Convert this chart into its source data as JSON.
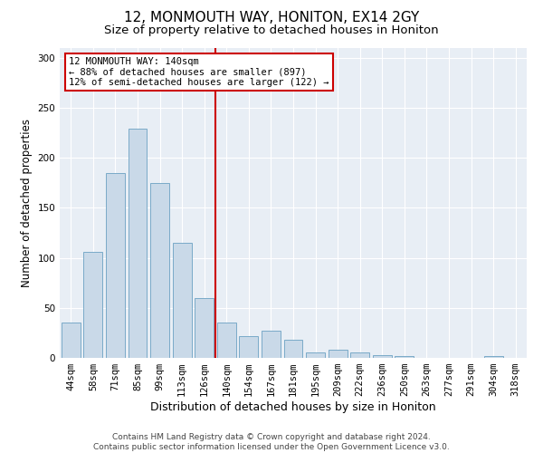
{
  "title": "12, MONMOUTH WAY, HONITON, EX14 2GY",
  "subtitle": "Size of property relative to detached houses in Honiton",
  "xlabel": "Distribution of detached houses by size in Honiton",
  "ylabel": "Number of detached properties",
  "categories": [
    "44sqm",
    "58sqm",
    "71sqm",
    "85sqm",
    "99sqm",
    "113sqm",
    "126sqm",
    "140sqm",
    "154sqm",
    "167sqm",
    "181sqm",
    "195sqm",
    "209sqm",
    "222sqm",
    "236sqm",
    "250sqm",
    "263sqm",
    "277sqm",
    "291sqm",
    "304sqm",
    "318sqm"
  ],
  "values": [
    35,
    106,
    185,
    229,
    175,
    115,
    60,
    35,
    22,
    27,
    18,
    5,
    8,
    5,
    3,
    2,
    0,
    0,
    0,
    2,
    0
  ],
  "bar_color": "#c9d9e8",
  "bar_edge_color": "#7aaac8",
  "vline_x": 6.5,
  "vline_color": "#cc0000",
  "annotation_text": "12 MONMOUTH WAY: 140sqm\n← 88% of detached houses are smaller (897)\n12% of semi-detached houses are larger (122) →",
  "annotation_box_color": "#ffffff",
  "annotation_box_edge": "#cc0000",
  "ylim": [
    0,
    310
  ],
  "yticks": [
    0,
    50,
    100,
    150,
    200,
    250,
    300
  ],
  "bg_color": "#e8eef5",
  "footer": "Contains HM Land Registry data © Crown copyright and database right 2024.\nContains public sector information licensed under the Open Government Licence v3.0.",
  "title_fontsize": 11,
  "subtitle_fontsize": 9.5,
  "axis_label_fontsize": 8.5,
  "tick_fontsize": 7.5,
  "footer_fontsize": 6.5
}
